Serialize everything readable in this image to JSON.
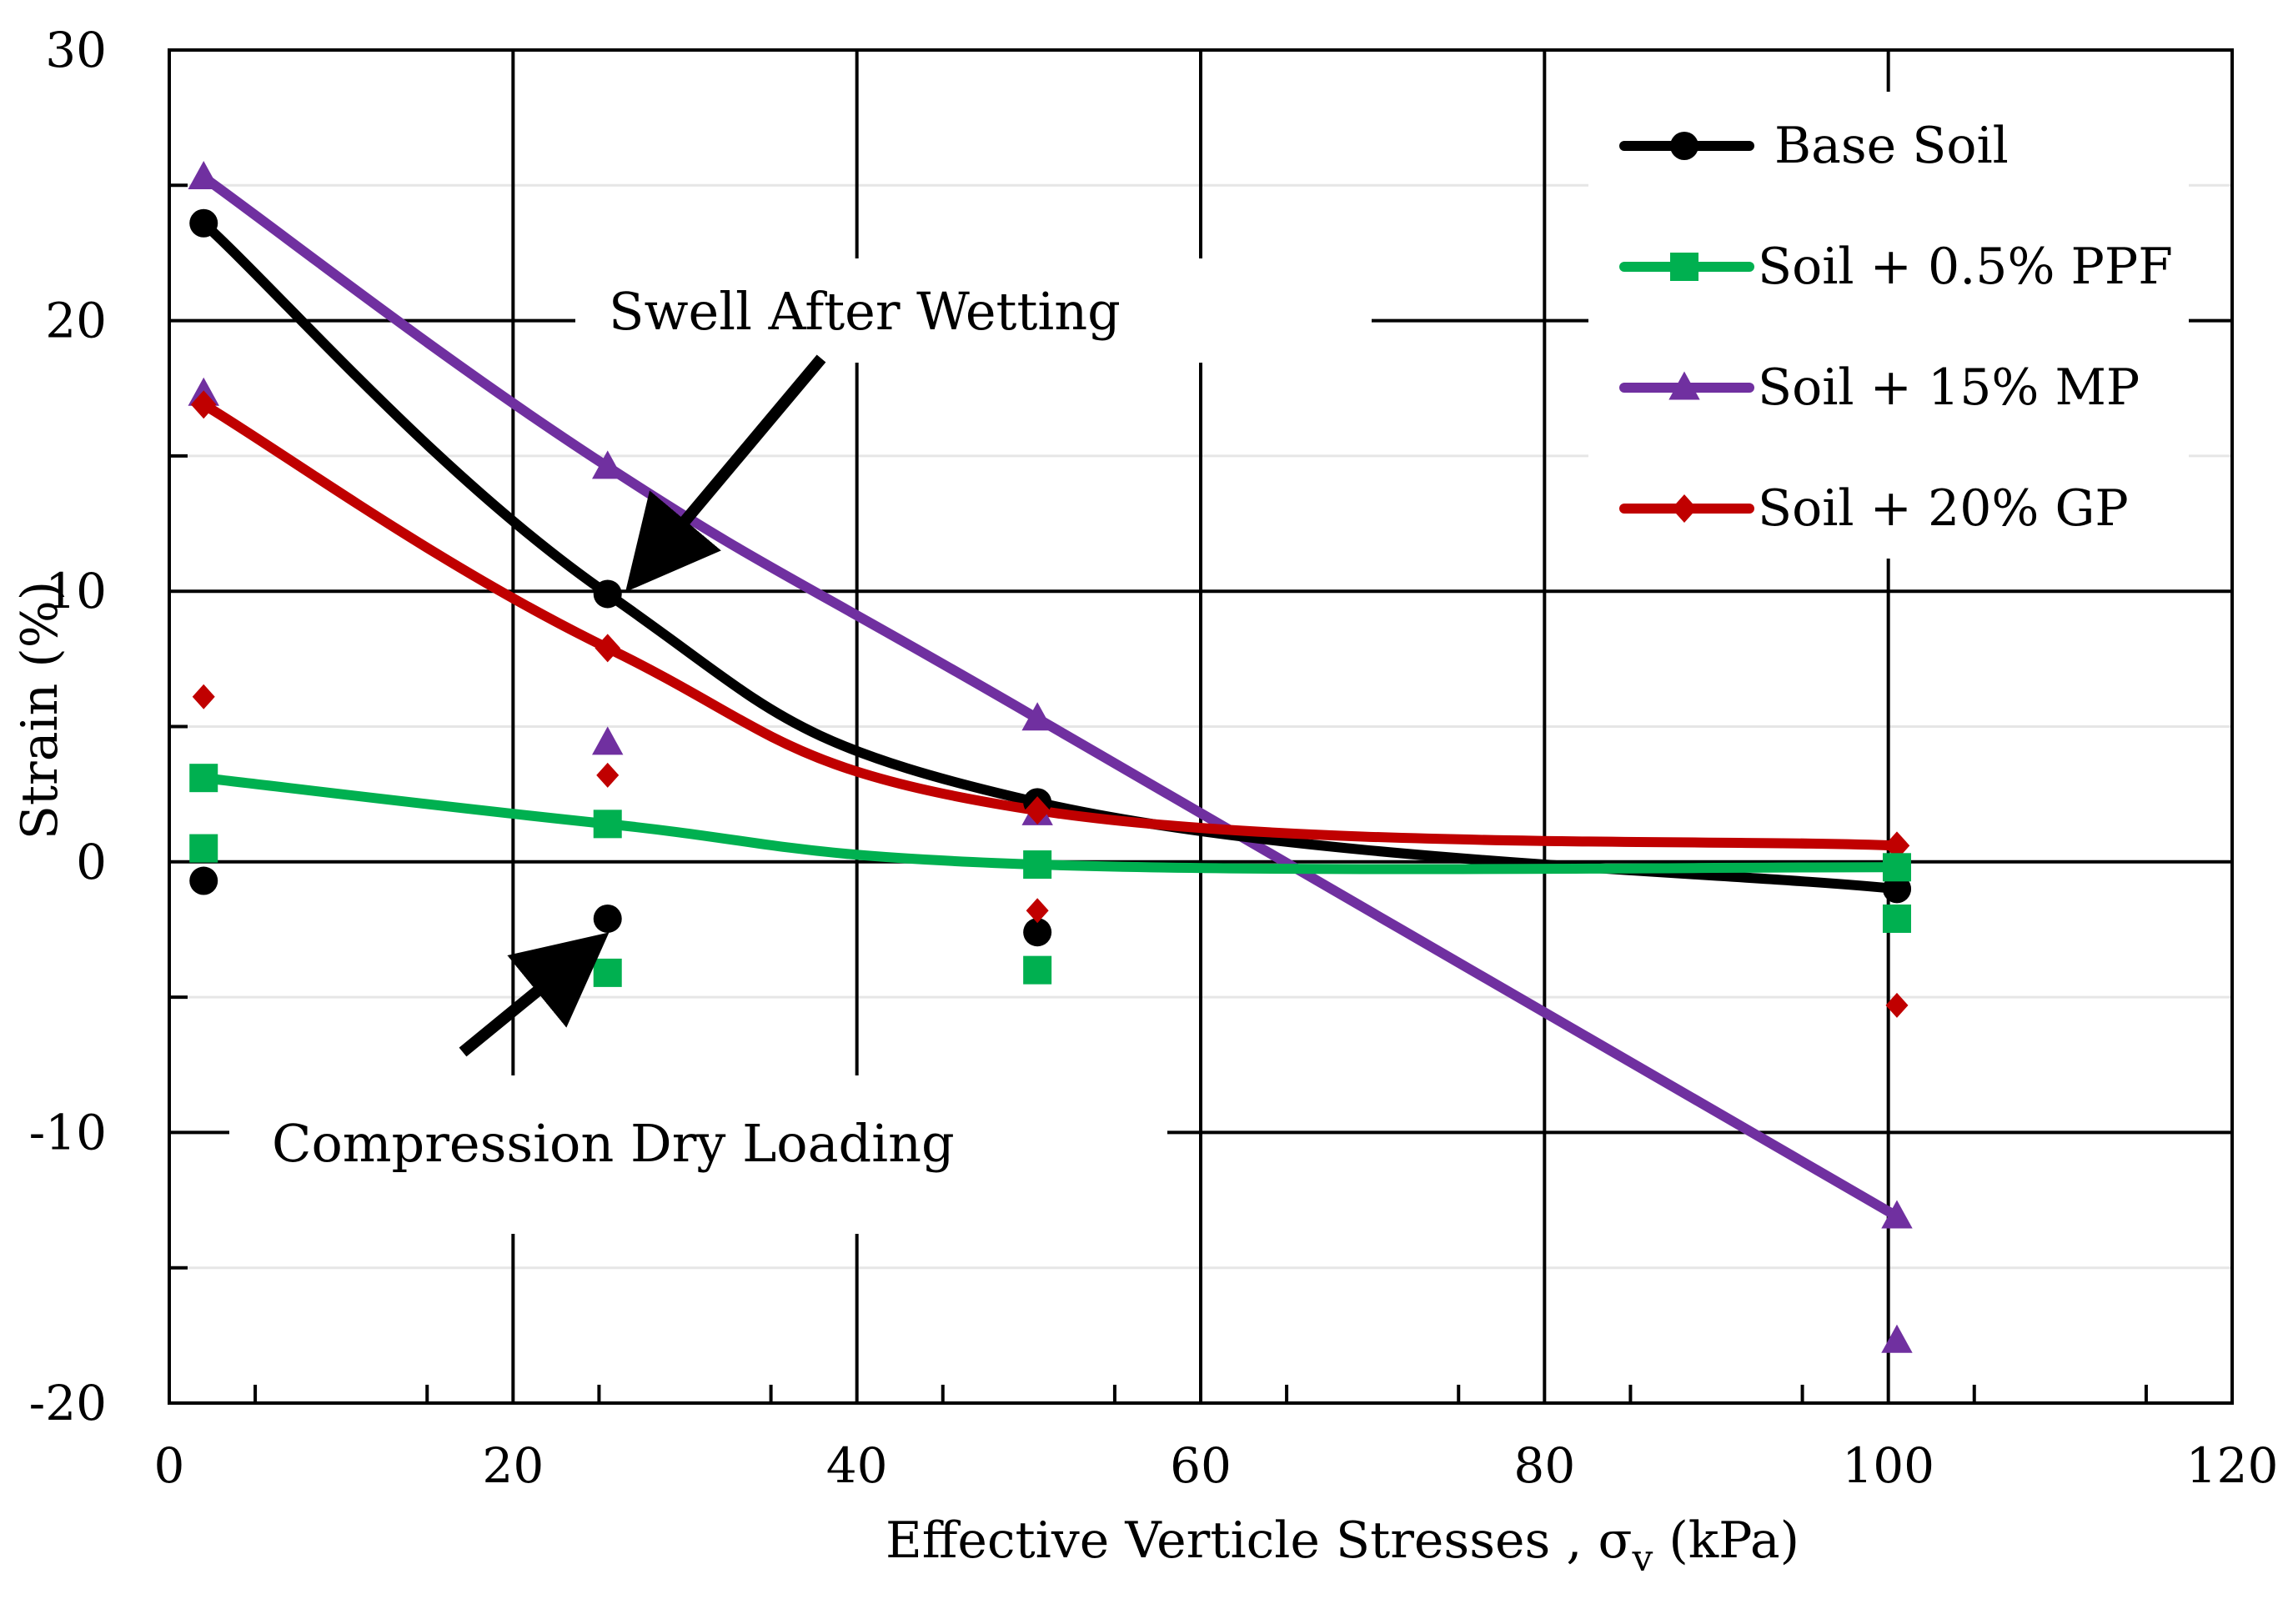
{
  "chart_data": {
    "type": "line",
    "title": "",
    "xlabel": "Effective Verticle Stresses , σv (kPa)",
    "xlabel_parts": {
      "main": "Effective Verticle Stresses , σ",
      "sub": "v",
      "tail": " (kPa)"
    },
    "ylabel": "Strain (%)",
    "xlim": [
      0,
      120
    ],
    "ylim": [
      -20,
      30
    ],
    "x_ticks": [
      0,
      20,
      40,
      60,
      80,
      100,
      120
    ],
    "x_tick_labels": [
      "0",
      "20",
      "40",
      "60",
      "80",
      "100",
      "120"
    ],
    "y_ticks": [
      -20,
      -10,
      0,
      10,
      20,
      30
    ],
    "y_tick_labels": [
      "-20",
      "-10",
      "0",
      "10",
      "20",
      "30"
    ],
    "grid": true,
    "legend_position": "top-right",
    "series": [
      {
        "name": "Base Soil",
        "color": "#000000",
        "marker": "circle",
        "x": [
          2,
          25.5,
          50.5,
          100.5
        ],
        "swell_after_wetting": [
          23.6,
          9.9,
          2.2,
          -1.0
        ],
        "compression_dry_loading": [
          -0.7,
          -2.1,
          -2.6,
          -1.0
        ]
      },
      {
        "name": "Soil + 0.5% PPF",
        "color": "#00b050",
        "marker": "square",
        "x": [
          2,
          25.5,
          50.5,
          100.5
        ],
        "swell_after_wetting": [
          3.1,
          1.4,
          -0.1,
          -0.2
        ],
        "compression_dry_loading": [
          0.5,
          -4.1,
          -4.0,
          -2.1
        ]
      },
      {
        "name": "Soil + 15% MP",
        "color": "#7030a0",
        "marker": "triangle",
        "x": [
          2,
          25.5,
          50.5,
          100.5
        ],
        "swell_after_wetting": [
          25.3,
          14.6,
          5.3,
          -13.1
        ],
        "compression_dry_loading": [
          17.3,
          4.4,
          1.8,
          -17.7
        ]
      },
      {
        "name": "Soil + 20% GP",
        "color": "#c00000",
        "marker": "diamond",
        "x": [
          2,
          25.5,
          50.5,
          100.5
        ],
        "swell_after_wetting": [
          16.9,
          7.9,
          1.9,
          0.6
        ],
        "compression_dry_loading": [
          6.1,
          3.2,
          -1.8,
          -5.3
        ]
      }
    ],
    "annotations": [
      {
        "text": "Swell After Wetting",
        "points_to": {
          "x": 26,
          "y": 10
        }
      },
      {
        "text": "Compression Dry Loading",
        "points_to": {
          "x": 26,
          "y": -2.5
        }
      }
    ]
  }
}
